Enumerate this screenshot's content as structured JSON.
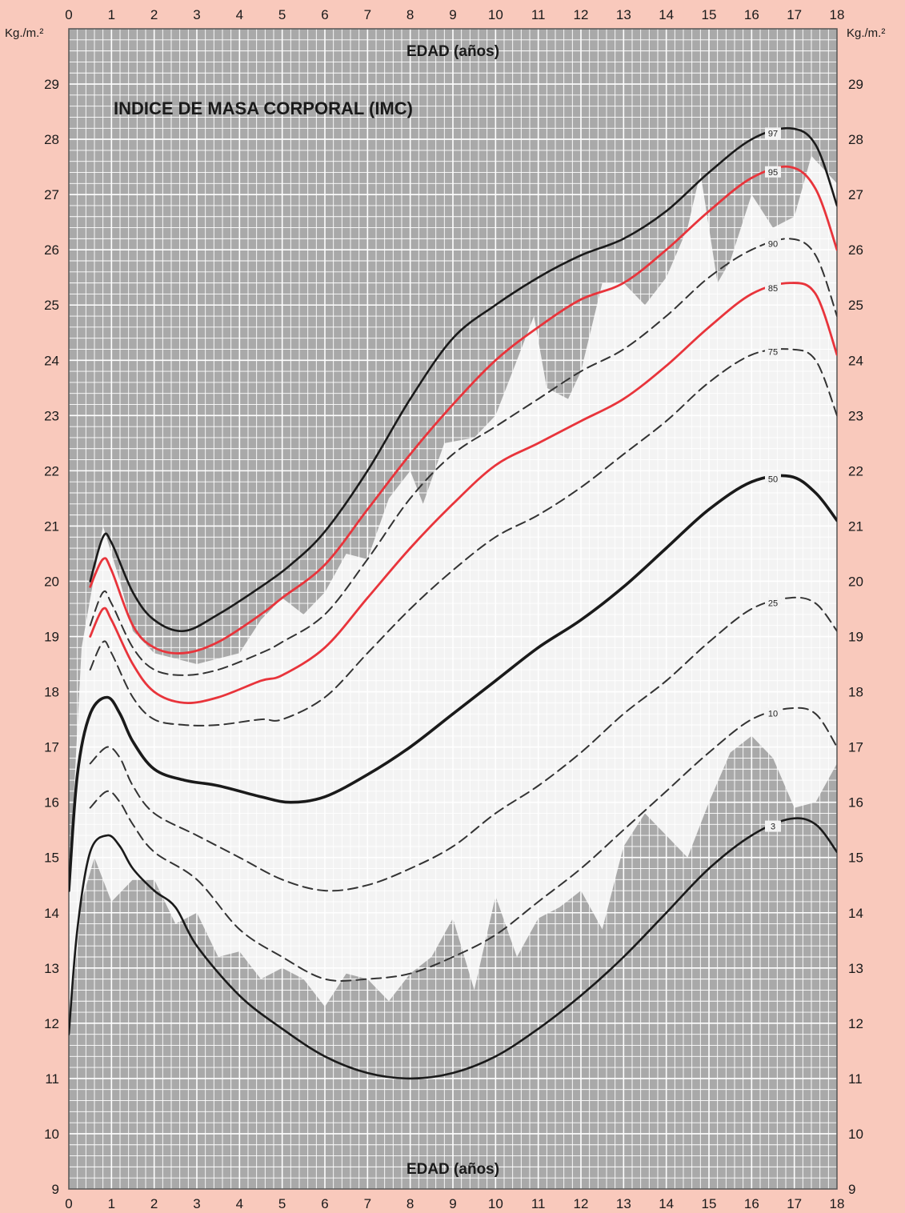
{
  "chart_data": {
    "type": "line",
    "title": "INDICE DE MASA CORPORAL (IMC)",
    "xlabel": "EDAD (años)",
    "ylabel": "Kg./m.²",
    "xlim": [
      0,
      18
    ],
    "ylim": [
      9,
      30
    ],
    "x_ticks": [
      0,
      1,
      2,
      3,
      4,
      5,
      6,
      7,
      8,
      9,
      10,
      11,
      12,
      13,
      14,
      15,
      16,
      17,
      18
    ],
    "y_ticks": [
      9,
      10,
      11,
      12,
      13,
      14,
      15,
      16,
      17,
      18,
      19,
      20,
      21,
      22,
      23,
      24,
      25,
      26,
      27,
      28,
      29
    ],
    "grid": true,
    "colors": {
      "background": "#f9c9bc",
      "plot_grey": "#a9a9a9",
      "plot_light": "#f3f3f3",
      "grid_line": "#ffffff",
      "black_line": "#1a1a1a",
      "red_line": "#e8343b",
      "dashed_line": "#333333"
    },
    "series": [
      {
        "name": "97",
        "color": "black",
        "style": "solid",
        "label_x": 16.5,
        "values": [
          [
            0.5,
            20.0
          ],
          [
            0.8,
            20.8
          ],
          [
            1.0,
            20.7
          ],
          [
            1.5,
            19.8
          ],
          [
            2.0,
            19.3
          ],
          [
            2.7,
            19.1
          ],
          [
            3.5,
            19.4
          ],
          [
            4.5,
            19.9
          ],
          [
            5.2,
            20.3
          ],
          [
            6.0,
            20.9
          ],
          [
            7.0,
            22.0
          ],
          [
            8.0,
            23.3
          ],
          [
            9.0,
            24.4
          ],
          [
            10.0,
            25.0
          ],
          [
            11.0,
            25.5
          ],
          [
            12.0,
            25.9
          ],
          [
            13.0,
            26.2
          ],
          [
            14.0,
            26.7
          ],
          [
            15.0,
            27.4
          ],
          [
            16.0,
            28.0
          ],
          [
            16.9,
            28.2
          ],
          [
            17.5,
            27.9
          ],
          [
            18.0,
            26.8
          ]
        ]
      },
      {
        "name": "95",
        "color": "red",
        "style": "solid",
        "label_x": 16.5,
        "values": [
          [
            0.5,
            19.9
          ],
          [
            0.8,
            20.4
          ],
          [
            1.0,
            20.2
          ],
          [
            1.5,
            19.2
          ],
          [
            2.0,
            18.8
          ],
          [
            2.7,
            18.7
          ],
          [
            3.5,
            18.9
          ],
          [
            4.5,
            19.4
          ],
          [
            5.0,
            19.7
          ],
          [
            6.0,
            20.3
          ],
          [
            7.0,
            21.3
          ],
          [
            8.0,
            22.3
          ],
          [
            9.0,
            23.2
          ],
          [
            10.0,
            24.0
          ],
          [
            11.0,
            24.6
          ],
          [
            12.0,
            25.1
          ],
          [
            13.0,
            25.4
          ],
          [
            14.0,
            26.0
          ],
          [
            15.0,
            26.7
          ],
          [
            16.0,
            27.3
          ],
          [
            16.9,
            27.5
          ],
          [
            17.5,
            27.1
          ],
          [
            18.0,
            26.0
          ]
        ]
      },
      {
        "name": "90",
        "color": "dashed",
        "style": "dashed",
        "label_x": 16.5,
        "values": [
          [
            0.5,
            19.2
          ],
          [
            0.8,
            19.8
          ],
          [
            1.0,
            19.6
          ],
          [
            1.5,
            18.8
          ],
          [
            2.0,
            18.4
          ],
          [
            2.7,
            18.3
          ],
          [
            3.5,
            18.4
          ],
          [
            4.5,
            18.7
          ],
          [
            5.0,
            18.9
          ],
          [
            6.0,
            19.4
          ],
          [
            7.0,
            20.4
          ],
          [
            8.0,
            21.5
          ],
          [
            9.0,
            22.3
          ],
          [
            10.0,
            22.8
          ],
          [
            11.0,
            23.3
          ],
          [
            12.0,
            23.8
          ],
          [
            13.0,
            24.2
          ],
          [
            14.0,
            24.8
          ],
          [
            15.0,
            25.5
          ],
          [
            16.0,
            26.0
          ],
          [
            16.9,
            26.2
          ],
          [
            17.5,
            25.9
          ],
          [
            18.0,
            24.8
          ]
        ]
      },
      {
        "name": "85",
        "color": "red",
        "style": "solid",
        "label_x": 16.5,
        "values": [
          [
            0.5,
            19.0
          ],
          [
            0.8,
            19.5
          ],
          [
            1.0,
            19.3
          ],
          [
            1.5,
            18.5
          ],
          [
            2.0,
            18.0
          ],
          [
            2.7,
            17.8
          ],
          [
            3.5,
            17.9
          ],
          [
            4.5,
            18.2
          ],
          [
            5.0,
            18.3
          ],
          [
            6.0,
            18.8
          ],
          [
            7.0,
            19.7
          ],
          [
            8.0,
            20.6
          ],
          [
            9.0,
            21.4
          ],
          [
            10.0,
            22.1
          ],
          [
            11.0,
            22.5
          ],
          [
            12.0,
            22.9
          ],
          [
            13.0,
            23.3
          ],
          [
            14.0,
            23.9
          ],
          [
            15.0,
            24.6
          ],
          [
            16.0,
            25.2
          ],
          [
            16.9,
            25.4
          ],
          [
            17.5,
            25.2
          ],
          [
            18.0,
            24.1
          ]
        ]
      },
      {
        "name": "75",
        "color": "dashed",
        "style": "dashed",
        "label_x": 16.5,
        "values": [
          [
            0.5,
            18.4
          ],
          [
            0.8,
            18.9
          ],
          [
            1.0,
            18.7
          ],
          [
            1.5,
            17.9
          ],
          [
            2.0,
            17.5
          ],
          [
            2.7,
            17.4
          ],
          [
            3.5,
            17.4
          ],
          [
            4.5,
            17.5
          ],
          [
            5.0,
            17.5
          ],
          [
            6.0,
            17.9
          ],
          [
            7.0,
            18.7
          ],
          [
            8.0,
            19.5
          ],
          [
            9.0,
            20.2
          ],
          [
            10.0,
            20.8
          ],
          [
            11.0,
            21.2
          ],
          [
            12.0,
            21.7
          ],
          [
            13.0,
            22.3
          ],
          [
            14.0,
            22.9
          ],
          [
            15.0,
            23.6
          ],
          [
            16.0,
            24.1
          ],
          [
            16.9,
            24.2
          ],
          [
            17.5,
            24.0
          ],
          [
            18.0,
            23.0
          ]
        ]
      },
      {
        "name": "50",
        "color": "black",
        "style": "solid-thick",
        "label_x": 16.5,
        "values": [
          [
            0.0,
            14.4
          ],
          [
            0.2,
            16.5
          ],
          [
            0.5,
            17.6
          ],
          [
            0.9,
            17.9
          ],
          [
            1.2,
            17.6
          ],
          [
            1.5,
            17.1
          ],
          [
            2.0,
            16.6
          ],
          [
            2.7,
            16.4
          ],
          [
            3.5,
            16.3
          ],
          [
            4.5,
            16.1
          ],
          [
            5.2,
            16.0
          ],
          [
            6.0,
            16.1
          ],
          [
            7.0,
            16.5
          ],
          [
            8.0,
            17.0
          ],
          [
            9.0,
            17.6
          ],
          [
            10.0,
            18.2
          ],
          [
            11.0,
            18.8
          ],
          [
            12.0,
            19.3
          ],
          [
            13.0,
            19.9
          ],
          [
            14.0,
            20.6
          ],
          [
            15.0,
            21.3
          ],
          [
            16.0,
            21.8
          ],
          [
            16.9,
            21.9
          ],
          [
            17.5,
            21.6
          ],
          [
            18.0,
            21.1
          ]
        ]
      },
      {
        "name": "25",
        "color": "dashed",
        "style": "dashed",
        "label_x": 16.5,
        "values": [
          [
            0.5,
            16.7
          ],
          [
            0.9,
            17.0
          ],
          [
            1.2,
            16.8
          ],
          [
            1.5,
            16.3
          ],
          [
            2.0,
            15.8
          ],
          [
            3.0,
            15.4
          ],
          [
            4.0,
            15.0
          ],
          [
            5.0,
            14.6
          ],
          [
            6.0,
            14.4
          ],
          [
            7.0,
            14.5
          ],
          [
            8.0,
            14.8
          ],
          [
            9.0,
            15.2
          ],
          [
            10.0,
            15.8
          ],
          [
            11.0,
            16.3
          ],
          [
            12.0,
            16.9
          ],
          [
            13.0,
            17.6
          ],
          [
            14.0,
            18.2
          ],
          [
            15.0,
            18.9
          ],
          [
            16.0,
            19.5
          ],
          [
            16.9,
            19.7
          ],
          [
            17.5,
            19.6
          ],
          [
            18.0,
            19.1
          ]
        ]
      },
      {
        "name": "10",
        "color": "dashed",
        "style": "dashed",
        "label_x": 16.5,
        "values": [
          [
            0.5,
            15.9
          ],
          [
            0.9,
            16.2
          ],
          [
            1.2,
            16.0
          ],
          [
            1.5,
            15.6
          ],
          [
            2.0,
            15.1
          ],
          [
            3.0,
            14.6
          ],
          [
            4.0,
            13.7
          ],
          [
            5.0,
            13.2
          ],
          [
            6.0,
            12.8
          ],
          [
            7.0,
            12.8
          ],
          [
            8.0,
            12.9
          ],
          [
            9.0,
            13.2
          ],
          [
            10.0,
            13.6
          ],
          [
            11.0,
            14.2
          ],
          [
            12.0,
            14.8
          ],
          [
            13.0,
            15.5
          ],
          [
            14.0,
            16.2
          ],
          [
            15.0,
            16.9
          ],
          [
            16.0,
            17.5
          ],
          [
            16.9,
            17.7
          ],
          [
            17.5,
            17.6
          ],
          [
            18.0,
            17.0
          ]
        ]
      },
      {
        "name": "3",
        "color": "black",
        "style": "solid",
        "label_x": 16.5,
        "values": [
          [
            0.0,
            11.8
          ],
          [
            0.2,
            13.7
          ],
          [
            0.5,
            15.1
          ],
          [
            0.9,
            15.4
          ],
          [
            1.2,
            15.2
          ],
          [
            1.5,
            14.8
          ],
          [
            2.0,
            14.4
          ],
          [
            2.5,
            14.1
          ],
          [
            3.0,
            13.4
          ],
          [
            4.0,
            12.5
          ],
          [
            5.0,
            11.9
          ],
          [
            6.0,
            11.4
          ],
          [
            7.0,
            11.1
          ],
          [
            8.0,
            11.0
          ],
          [
            9.0,
            11.1
          ],
          [
            10.0,
            11.4
          ],
          [
            11.0,
            11.9
          ],
          [
            12.0,
            12.5
          ],
          [
            13.0,
            13.2
          ],
          [
            14.0,
            14.0
          ],
          [
            15.0,
            14.8
          ],
          [
            16.0,
            15.4
          ],
          [
            16.9,
            15.7
          ],
          [
            17.5,
            15.6
          ],
          [
            18.0,
            15.1
          ]
        ]
      }
    ],
    "light_band": {
      "upper": [
        [
          0.0,
          14.4
        ],
        [
          0.3,
          18.8
        ],
        [
          0.8,
          21.0
        ],
        [
          1.2,
          20.0
        ],
        [
          1.5,
          19.1
        ],
        [
          2.0,
          18.7
        ],
        [
          3.0,
          18.5
        ],
        [
          4.0,
          18.7
        ],
        [
          4.5,
          19.3
        ],
        [
          5.0,
          19.7
        ],
        [
          5.5,
          19.4
        ],
        [
          6.0,
          19.8
        ],
        [
          6.5,
          20.5
        ],
        [
          7.0,
          20.4
        ],
        [
          7.5,
          21.5
        ],
        [
          8.0,
          22.0
        ],
        [
          8.3,
          21.4
        ],
        [
          8.8,
          22.5
        ],
        [
          9.5,
          22.6
        ],
        [
          10.0,
          23.0
        ],
        [
          10.5,
          24.0
        ],
        [
          10.9,
          24.8
        ],
        [
          11.2,
          23.5
        ],
        [
          11.7,
          23.3
        ],
        [
          12.0,
          23.8
        ],
        [
          12.5,
          25.4
        ],
        [
          13.0,
          25.4
        ],
        [
          13.5,
          25.0
        ],
        [
          14.0,
          25.5
        ],
        [
          14.5,
          26.4
        ],
        [
          14.8,
          27.4
        ],
        [
          15.2,
          25.4
        ],
        [
          15.5,
          25.8
        ],
        [
          16.0,
          27.0
        ],
        [
          16.5,
          26.4
        ],
        [
          17.0,
          26.6
        ],
        [
          17.4,
          27.7
        ],
        [
          18.0,
          27.2
        ]
      ],
      "lower": [
        [
          0.0,
          11.8
        ],
        [
          0.3,
          14.2
        ],
        [
          0.6,
          15.0
        ],
        [
          1.0,
          14.2
        ],
        [
          1.5,
          14.6
        ],
        [
          2.0,
          14.6
        ],
        [
          2.5,
          13.8
        ],
        [
          3.0,
          14.0
        ],
        [
          3.5,
          13.2
        ],
        [
          4.0,
          13.3
        ],
        [
          4.5,
          12.8
        ],
        [
          5.0,
          13.0
        ],
        [
          5.5,
          12.8
        ],
        [
          6.0,
          12.3
        ],
        [
          6.5,
          12.9
        ],
        [
          7.0,
          12.8
        ],
        [
          7.5,
          12.4
        ],
        [
          8.0,
          12.9
        ],
        [
          8.5,
          13.2
        ],
        [
          9.0,
          13.9
        ],
        [
          9.5,
          12.6
        ],
        [
          10.0,
          14.3
        ],
        [
          10.5,
          13.2
        ],
        [
          11.0,
          13.9
        ],
        [
          11.5,
          14.1
        ],
        [
          12.0,
          14.4
        ],
        [
          12.5,
          13.7
        ],
        [
          13.0,
          15.2
        ],
        [
          13.5,
          15.8
        ],
        [
          14.0,
          15.4
        ],
        [
          14.5,
          15.0
        ],
        [
          15.0,
          16.0
        ],
        [
          15.5,
          16.9
        ],
        [
          16.0,
          17.2
        ],
        [
          16.5,
          16.8
        ],
        [
          17.0,
          15.9
        ],
        [
          17.5,
          16.0
        ],
        [
          18.0,
          16.7
        ]
      ]
    }
  }
}
